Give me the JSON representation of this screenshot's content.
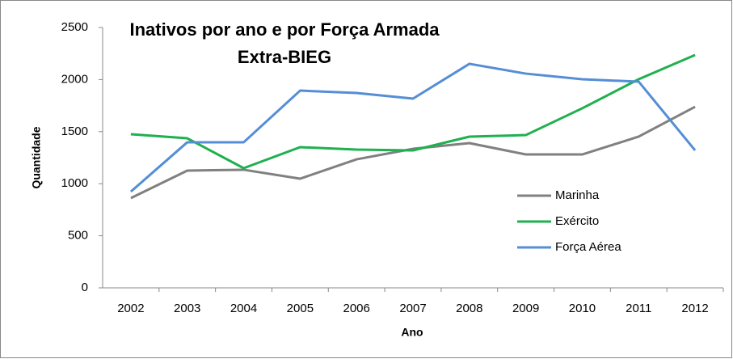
{
  "chart_data": {
    "type": "line",
    "title": "Inativos por ano e por Força Armada",
    "subtitle": "Extra-BIEG",
    "x_label": "Ano",
    "y_label": "Quantidade",
    "categories": [
      "2002",
      "2003",
      "2004",
      "2005",
      "2006",
      "2007",
      "2008",
      "2009",
      "2010",
      "2011",
      "2012"
    ],
    "series": [
      {
        "name": "Marinha",
        "color": "#808080",
        "values": [
          862,
          1126,
          1134,
          1048,
          1234,
          1335,
          1390,
          1281,
          1281,
          1452,
          1739
        ]
      },
      {
        "name": "Exército",
        "color": "#1fb04f",
        "values": [
          1475,
          1436,
          1149,
          1351,
          1328,
          1320,
          1452,
          1467,
          1724,
          2003,
          2236
        ]
      },
      {
        "name": "Força Aérea",
        "color": "#558ed5",
        "values": [
          924,
          1398,
          1398,
          1894,
          1871,
          1817,
          2151,
          2057,
          2003,
          1980,
          1320
        ]
      }
    ],
    "ylim": [
      0,
      2500
    ],
    "yticks": [
      0,
      500,
      1000,
      1500,
      2000,
      2500
    ],
    "grid": false,
    "legend": "right"
  }
}
